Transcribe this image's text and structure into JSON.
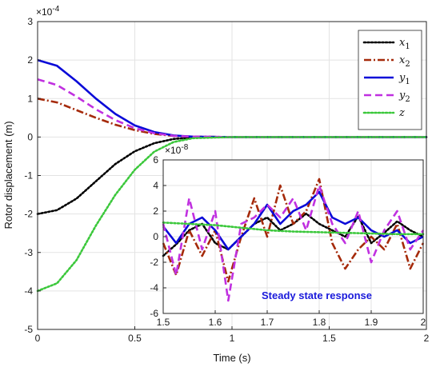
{
  "chart_data": [
    {
      "type": "line",
      "xlabel": "Time (s)",
      "ylabel": "Rotor displacement (m)",
      "y_exponent_base": "×10",
      "y_exponent": "-4",
      "xlim": [
        0,
        2
      ],
      "ylim": [
        -5,
        3
      ],
      "x_ticks": [
        "0",
        "0.5",
        "1",
        "1.5",
        "2"
      ],
      "y_ticks": [
        "-5",
        "-4",
        "-3",
        "-2",
        "-1",
        "0",
        "1",
        "2",
        "3"
      ],
      "grid": true,
      "legend_position": "top-right",
      "series": [
        {
          "name": "x",
          "sub": "1",
          "color": "#000000",
          "style": "dotted",
          "x": [
            0,
            0.1,
            0.2,
            0.3,
            0.4,
            0.5,
            0.6,
            0.7,
            0.8,
            1.0,
            1.5,
            2.0
          ],
          "y": [
            -2.0,
            -1.9,
            -1.6,
            -1.15,
            -0.7,
            -0.37,
            -0.16,
            -0.05,
            -0.01,
            0,
            0,
            0
          ]
        },
        {
          "name": "x",
          "sub": "2",
          "color": "#a52a0a",
          "style": "dashdot",
          "x": [
            0,
            0.1,
            0.2,
            0.3,
            0.4,
            0.5,
            0.6,
            0.7,
            0.8,
            1.0,
            1.5,
            2.0
          ],
          "y": [
            1.0,
            0.9,
            0.7,
            0.5,
            0.32,
            0.18,
            0.08,
            0.03,
            0.01,
            0,
            0,
            0
          ]
        },
        {
          "name": "y",
          "sub": "1",
          "color": "#0a0ad8",
          "style": "solid",
          "x": [
            0,
            0.1,
            0.2,
            0.3,
            0.4,
            0.5,
            0.6,
            0.7,
            0.8,
            1.0,
            1.5,
            2.0
          ],
          "y": [
            2.0,
            1.85,
            1.45,
            1.0,
            0.6,
            0.3,
            0.13,
            0.04,
            0.01,
            0,
            0,
            0
          ]
        },
        {
          "name": "y",
          "sub": "2",
          "color": "#c030e0",
          "style": "dashed",
          "x": [
            0,
            0.1,
            0.2,
            0.3,
            0.4,
            0.5,
            0.6,
            0.7,
            0.8,
            1.0,
            1.5,
            2.0
          ],
          "y": [
            1.5,
            1.35,
            1.05,
            0.72,
            0.44,
            0.23,
            0.1,
            0.03,
            0.01,
            0,
            0,
            0
          ]
        },
        {
          "name": "z",
          "sub": "",
          "color": "#3cc83c",
          "style": "dotted",
          "x": [
            0,
            0.1,
            0.2,
            0.3,
            0.4,
            0.5,
            0.6,
            0.7,
            0.8,
            1.0,
            1.5,
            2.0
          ],
          "y": [
            -4.0,
            -3.8,
            -3.2,
            -2.3,
            -1.5,
            -0.85,
            -0.38,
            -0.13,
            -0.03,
            0,
            0,
            0
          ]
        }
      ]
    },
    {
      "type": "line",
      "annotation": "Steady state response",
      "y_exponent_base": "×10",
      "y_exponent": "-8",
      "xlim": [
        1.5,
        2
      ],
      "ylim": [
        -6,
        6
      ],
      "x_ticks": [
        "1.5",
        "1.6",
        "1.7",
        "1.8",
        "1.9",
        "2"
      ],
      "y_ticks": [
        "-6",
        "-4",
        "-2",
        "0",
        "2",
        "4",
        "6"
      ],
      "grid": true,
      "series": [
        {
          "name": "x",
          "sub": "1",
          "color": "#000000",
          "style": "dotted",
          "x": [
            1.5,
            1.525,
            1.55,
            1.575,
            1.6,
            1.625,
            1.65,
            1.675,
            1.7,
            1.725,
            1.75,
            1.775,
            1.8,
            1.825,
            1.85,
            1.875,
            1.9,
            1.925,
            1.95,
            1.975,
            2.0
          ],
          "y": [
            -1.5,
            -0.6,
            0.5,
            1.0,
            -0.5,
            -1.0,
            0.0,
            1.0,
            1.5,
            0.5,
            1.0,
            1.8,
            1.0,
            0.5,
            0.0,
            1.6,
            -0.5,
            0.3,
            1.2,
            0.5,
            0.0
          ]
        },
        {
          "name": "x",
          "sub": "2",
          "color": "#a52a0a",
          "style": "dashdot",
          "x": [
            1.5,
            1.525,
            1.55,
            1.575,
            1.6,
            1.625,
            1.65,
            1.675,
            1.7,
            1.725,
            1.75,
            1.775,
            1.8,
            1.825,
            1.85,
            1.875,
            1.9,
            1.925,
            1.95,
            1.975,
            2.0
          ],
          "y": [
            -0.5,
            -3.0,
            0.5,
            -1.5,
            0.5,
            -3.5,
            0.0,
            3.0,
            0.0,
            4.0,
            1.0,
            2.0,
            4.5,
            -0.5,
            -2.5,
            -1.0,
            0.0,
            -1.0,
            1.0,
            -2.5,
            -0.5
          ]
        },
        {
          "name": "y",
          "sub": "1",
          "color": "#0a0ad8",
          "style": "solid",
          "x": [
            1.5,
            1.525,
            1.55,
            1.575,
            1.6,
            1.625,
            1.65,
            1.675,
            1.7,
            1.725,
            1.75,
            1.775,
            1.8,
            1.825,
            1.85,
            1.875,
            1.9,
            1.925,
            1.95,
            1.975,
            2.0
          ],
          "y": [
            0.8,
            -0.5,
            1.0,
            1.5,
            0.5,
            -1.0,
            0.0,
            1.0,
            2.5,
            1.0,
            2.0,
            2.5,
            3.5,
            1.5,
            1.0,
            1.5,
            0.5,
            0.0,
            0.5,
            -0.5,
            0.0
          ]
        },
        {
          "name": "y",
          "sub": "2",
          "color": "#c030e0",
          "style": "dashed",
          "x": [
            1.5,
            1.525,
            1.55,
            1.575,
            1.6,
            1.625,
            1.65,
            1.675,
            1.7,
            1.725,
            1.75,
            1.775,
            1.8,
            1.825,
            1.85,
            1.875,
            1.9,
            1.925,
            1.95,
            1.975,
            2.0
          ],
          "y": [
            1.0,
            -3.0,
            3.0,
            -1.0,
            2.0,
            -5.0,
            1.0,
            1.5,
            2.5,
            1.5,
            3.0,
            0.5,
            4.0,
            1.0,
            -0.5,
            2.0,
            -2.0,
            0.5,
            2.0,
            -1.0,
            0.5
          ]
        },
        {
          "name": "z",
          "sub": "",
          "color": "#3cc83c",
          "style": "dotted",
          "x": [
            1.5,
            1.55,
            1.6,
            1.65,
            1.7,
            1.75,
            1.8,
            1.85,
            1.9,
            1.95,
            2.0
          ],
          "y": [
            1.1,
            1.0,
            0.9,
            0.7,
            0.5,
            0.4,
            0.35,
            0.3,
            0.25,
            0.2,
            0.2
          ]
        }
      ]
    }
  ]
}
